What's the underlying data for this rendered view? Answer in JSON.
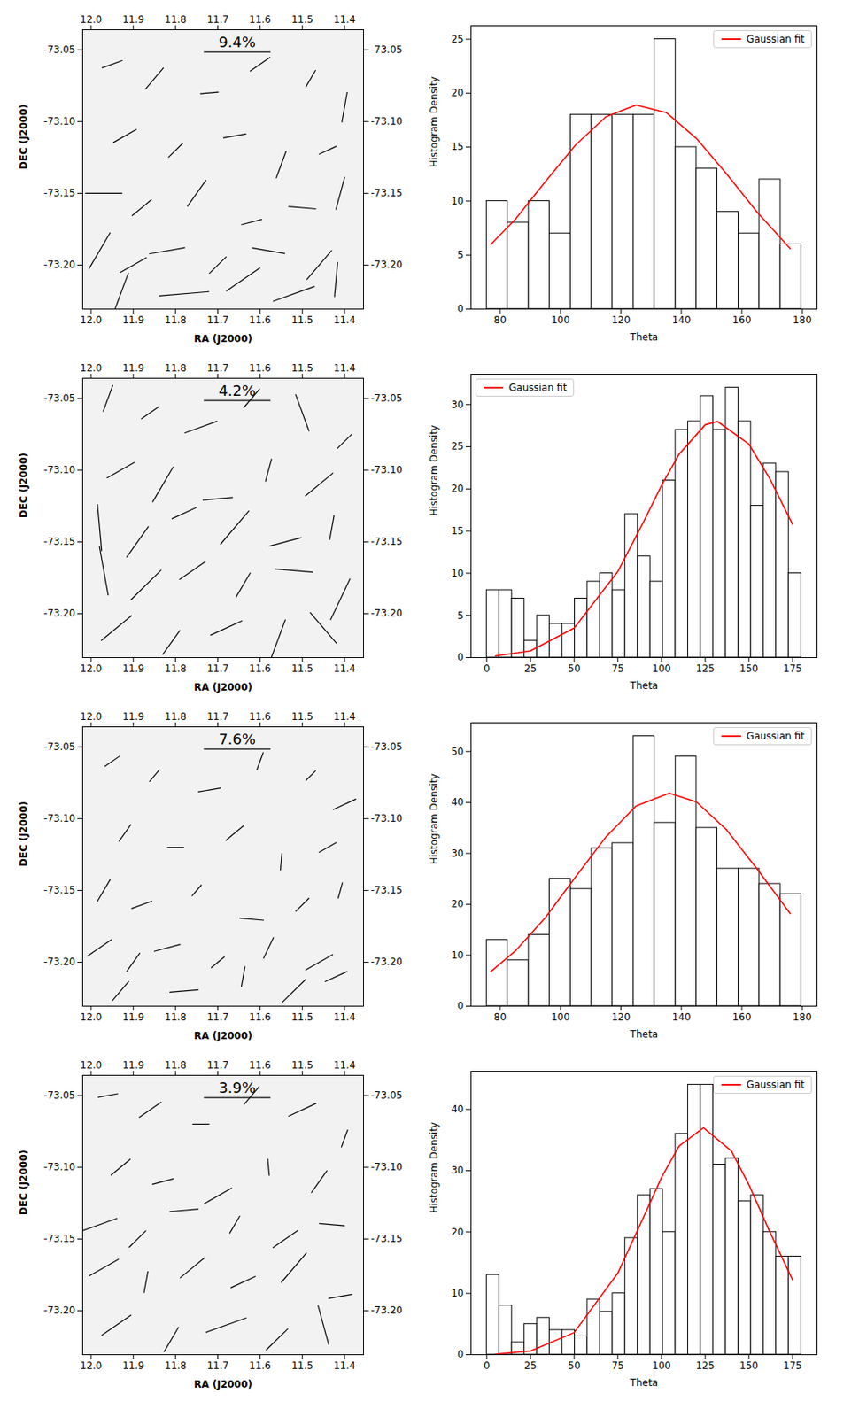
{
  "chart_data": [
    {
      "type": "vector",
      "x_label": "RA (J2000)",
      "y_label": "DEC (J2000)",
      "xlim": [
        12.02,
        11.355
      ],
      "ylim": [
        -73.2306,
        -73.036
      ],
      "xticks": [
        {
          "value": 12,
          "label": "12.0"
        },
        11.9,
        11.8,
        11.7,
        11.6,
        11.5,
        11.4
      ],
      "yticks": [
        -73.05,
        {
          "value": -73.1,
          "label": "-73.10"
        },
        -73.15,
        {
          "value": -73.2,
          "label": "-73.20"
        }
      ],
      "scale_bar": {
        "value": 9.4,
        "label": "9.4%"
      },
      "vectors": {
        "x": [
          11.95,
          11.85,
          11.72,
          11.6,
          11.48,
          11.4,
          11.92,
          11.8,
          11.66,
          11.55,
          11.44,
          11.97,
          11.88,
          11.75,
          11.62,
          11.5,
          11.41,
          11.98,
          11.9,
          11.82,
          11.7,
          11.58,
          11.46,
          11.93,
          11.78,
          11.64,
          11.52,
          11.42
        ],
        "y": [
          -73.06,
          -73.07,
          -73.08,
          -73.06,
          -73.07,
          -73.09,
          -73.11,
          -73.12,
          -73.11,
          -73.13,
          -73.12,
          -73.15,
          -73.16,
          -73.15,
          -73.17,
          -73.16,
          -73.15,
          -73.19,
          -73.2,
          -73.19,
          -73.2,
          -73.19,
          -73.2,
          -73.22,
          -73.22,
          -73.21,
          -73.22,
          -73.21
        ],
        "p": [
          3.1,
          4.0,
          2.6,
          3.5,
          2.8,
          4.4,
          3.8,
          2.9,
          3.3,
          4.1,
          2.7,
          5.2,
          3.6,
          4.6,
          3.0,
          3.9,
          4.8,
          6.0,
          4.3,
          5.1,
          3.4,
          4.7,
          5.5,
          6.4,
          7.0,
          5.8,
          6.2,
          5.0
        ],
        "theta": [
          110,
          140,
          95,
          125,
          150,
          170,
          120,
          135,
          100,
          160,
          115,
          90,
          130,
          145,
          105,
          85,
          165,
          150,
          120,
          100,
          135,
          80,
          140,
          160,
          95,
          125,
          110,
          175
        ]
      }
    },
    {
      "type": "histogram",
      "x_label": "Theta",
      "y_label": "Histogram Density",
      "xlim": [
        70.4,
        184.9
      ],
      "ylim": [
        0,
        26.25
      ],
      "xticks": [
        80,
        100,
        120,
        140,
        160,
        180
      ],
      "yticks": [
        0,
        5,
        10,
        15,
        20,
        25
      ],
      "bins": [
        75.6,
        82.5,
        89.5,
        96.4,
        103.4,
        110.3,
        117.2,
        124.2,
        131.1,
        138.1,
        145.0,
        151.9,
        158.9,
        165.8,
        172.8,
        179.7
      ],
      "values": [
        10,
        8,
        10,
        7,
        18,
        18,
        18,
        18,
        25,
        15,
        13,
        9,
        7,
        12,
        6
      ],
      "series": [
        {
          "name": "Gaussian fit",
          "color": "red",
          "type": "line",
          "x": [
            77,
            85,
            95,
            105,
            115,
            125,
            135,
            145,
            155,
            165,
            176
          ],
          "values": [
            6.0,
            8.3,
            11.8,
            15.2,
            17.8,
            18.9,
            18.2,
            15.8,
            12.5,
            9.0,
            5.6
          ]
        }
      ],
      "legend": "upper right"
    },
    {
      "type": "vector",
      "x_label": "RA (J2000)",
      "y_label": "DEC (J2000)",
      "xlim": [
        12.02,
        11.355
      ],
      "ylim": [
        -73.2306,
        -73.036
      ],
      "xticks": [
        {
          "value": 12,
          "label": "12.0"
        },
        11.9,
        11.8,
        11.7,
        11.6,
        11.5,
        11.4
      ],
      "yticks": [
        -73.05,
        {
          "value": -73.1,
          "label": "-73.10"
        },
        -73.15,
        {
          "value": -73.2,
          "label": "-73.20"
        }
      ],
      "scale_bar": {
        "value": 4.2,
        "label": "4.2%"
      },
      "vectors": {
        "x": [
          11.96,
          11.86,
          11.74,
          11.62,
          11.5,
          11.4,
          11.93,
          11.83,
          11.7,
          11.58,
          11.46,
          11.98,
          11.89,
          11.78,
          11.66,
          11.54,
          11.43,
          11.97,
          11.87,
          11.76,
          11.64,
          11.52,
          11.41,
          11.94,
          11.81,
          11.68,
          11.56,
          11.45
        ],
        "y": [
          -73.05,
          -73.06,
          -73.07,
          -73.05,
          -73.06,
          -73.08,
          -73.1,
          -73.11,
          -73.12,
          -73.1,
          -73.11,
          -73.14,
          -73.15,
          -73.13,
          -73.14,
          -73.15,
          -73.14,
          -73.17,
          -73.18,
          -73.17,
          -73.18,
          -73.17,
          -73.19,
          -73.21,
          -73.22,
          -73.21,
          -73.22,
          -73.21
        ],
        "p": [
          1.8,
          1.4,
          2.2,
          1.6,
          2.5,
          1.3,
          2.0,
          2.6,
          1.9,
          1.5,
          2.3,
          3.0,
          2.4,
          1.7,
          2.8,
          2.1,
          1.6,
          3.2,
          2.7,
          2.0,
          1.8,
          2.4,
          2.9,
          2.5,
          1.9,
          2.2,
          3.1,
          2.6
        ],
        "theta": [
          160,
          125,
          110,
          140,
          20,
          135,
          120,
          150,
          95,
          165,
          130,
          5,
          145,
          115,
          140,
          105,
          170,
          10,
          135,
          125,
          150,
          85,
          155,
          130,
          145,
          115,
          160,
          40
        ]
      }
    },
    {
      "type": "histogram",
      "x_label": "Theta",
      "y_label": "Histogram Density",
      "xlim": [
        -9,
        189
      ],
      "ylim": [
        0,
        33.6
      ],
      "xticks": [
        0,
        25,
        50,
        75,
        100,
        125,
        150,
        175
      ],
      "yticks": [
        0,
        5,
        10,
        15,
        20,
        25,
        30
      ],
      "bins": [
        0,
        7.2,
        14.4,
        21.6,
        28.8,
        36,
        43.2,
        50.4,
        57.6,
        64.8,
        72,
        79.2,
        86.4,
        93.6,
        100.8,
        108,
        115.2,
        122.4,
        129.6,
        136.8,
        144,
        151.2,
        158.4,
        165.6,
        172.8,
        180
      ],
      "values": [
        8,
        8,
        7,
        2,
        5,
        4,
        4,
        7,
        9,
        10,
        8,
        17,
        12,
        9,
        21,
        27,
        28,
        31,
        27,
        32,
        28,
        18,
        23,
        22,
        10
      ],
      "series": [
        {
          "name": "Gaussian fit",
          "color": "red",
          "type": "line",
          "x": [
            5,
            25,
            50,
            75,
            90,
            100,
            110,
            125,
            132,
            150,
            162,
            175
          ],
          "values": [
            0.2,
            0.8,
            3.5,
            10.2,
            16.2,
            20.4,
            24.1,
            27.6,
            28.0,
            25.3,
            21.2,
            15.8
          ]
        }
      ],
      "legend": "upper left"
    },
    {
      "type": "vector",
      "x_label": "RA (J2000)",
      "y_label": "DEC (J2000)",
      "xlim": [
        12.02,
        11.355
      ],
      "ylim": [
        -73.2306,
        -73.036
      ],
      "xticks": [
        {
          "value": 12,
          "label": "12.0"
        },
        11.9,
        11.8,
        11.7,
        11.6,
        11.5,
        11.4
      ],
      "yticks": [
        -73.05,
        {
          "value": -73.1,
          "label": "-73.10"
        },
        -73.15,
        {
          "value": -73.2,
          "label": "-73.20"
        }
      ],
      "scale_bar": {
        "value": 7.6,
        "label": "7.6%"
      },
      "vectors": {
        "x": [
          11.95,
          11.85,
          11.72,
          11.6,
          11.48,
          11.4,
          11.92,
          11.8,
          11.66,
          11.55,
          11.44,
          11.97,
          11.88,
          11.75,
          11.62,
          11.5,
          11.41,
          11.98,
          11.9,
          11.82,
          11.7,
          11.58,
          11.46,
          11.93,
          11.78,
          11.64,
          11.52,
          11.42
        ],
        "y": [
          -73.06,
          -73.07,
          -73.08,
          -73.06,
          -73.07,
          -73.09,
          -73.11,
          -73.12,
          -73.11,
          -73.13,
          -73.12,
          -73.15,
          -73.16,
          -73.15,
          -73.17,
          -73.16,
          -73.15,
          -73.19,
          -73.2,
          -73.19,
          -73.2,
          -73.19,
          -73.2,
          -73.22,
          -73.22,
          -73.21,
          -73.22,
          -73.21
        ],
        "p": [
          2.1,
          1.8,
          2.6,
          2.2,
          1.6,
          2.9,
          2.4,
          1.9,
          2.7,
          2.0,
          2.3,
          3.0,
          2.5,
          1.7,
          2.8,
          2.2,
          1.9,
          3.4,
          2.6,
          3.1,
          2.0,
          2.7,
          3.6,
          2.9,
          3.3,
          2.4,
          3.8,
          2.8
        ],
        "theta": [
          125,
          140,
          100,
          160,
          135,
          115,
          145,
          90,
          130,
          175,
          120,
          150,
          110,
          140,
          85,
          135,
          165,
          125,
          145,
          105,
          130,
          155,
          120,
          140,
          95,
          170,
          135,
          115
        ]
      }
    },
    {
      "type": "histogram",
      "x_label": "Theta",
      "y_label": "Histogram Density",
      "xlim": [
        70.4,
        184.9
      ],
      "ylim": [
        0,
        55.65
      ],
      "xticks": [
        80,
        100,
        120,
        140,
        160,
        180
      ],
      "yticks": [
        0,
        10,
        20,
        30,
        40,
        50
      ],
      "bins": [
        75.6,
        82.5,
        89.5,
        96.4,
        103.4,
        110.3,
        117.2,
        124.2,
        131.1,
        138.1,
        145.0,
        151.9,
        158.9,
        165.8,
        172.8,
        179.7
      ],
      "values": [
        13,
        9,
        14,
        25,
        23,
        31,
        32,
        53,
        36,
        49,
        35,
        27,
        27,
        24,
        22
      ],
      "series": [
        {
          "name": "Gaussian fit",
          "color": "red",
          "type": "line",
          "x": [
            77,
            85,
            95,
            105,
            115,
            125,
            136,
            145,
            155,
            165,
            176
          ],
          "values": [
            6.8,
            10.8,
            17.4,
            25.4,
            33.2,
            39.3,
            41.8,
            40.1,
            34.6,
            27.0,
            18.2
          ]
        }
      ],
      "legend": "upper right"
    },
    {
      "type": "vector",
      "x_label": "RA (J2000)",
      "y_label": "DEC (J2000)",
      "xlim": [
        12.02,
        11.355
      ],
      "ylim": [
        -73.2306,
        -73.036
      ],
      "xticks": [
        {
          "value": 12,
          "label": "12.0"
        },
        11.9,
        11.8,
        11.7,
        11.6,
        11.5,
        11.4
      ],
      "yticks": [
        -73.05,
        {
          "value": -73.1,
          "label": "-73.10"
        },
        -73.15,
        {
          "value": -73.2,
          "label": "-73.20"
        }
      ],
      "scale_bar": {
        "value": 3.9,
        "label": "3.9%"
      },
      "vectors": {
        "x": [
          11.96,
          11.86,
          11.74,
          11.62,
          11.5,
          11.4,
          11.93,
          11.83,
          11.7,
          11.58,
          11.46,
          11.98,
          11.89,
          11.78,
          11.66,
          11.54,
          11.43,
          11.97,
          11.87,
          11.76,
          11.64,
          11.52,
          11.41,
          11.94,
          11.81,
          11.68,
          11.56,
          11.45
        ],
        "y": [
          -73.05,
          -73.06,
          -73.07,
          -73.05,
          -73.06,
          -73.08,
          -73.1,
          -73.11,
          -73.12,
          -73.1,
          -73.11,
          -73.14,
          -73.15,
          -73.13,
          -73.14,
          -73.15,
          -73.14,
          -73.17,
          -73.18,
          -73.17,
          -73.18,
          -73.17,
          -73.19,
          -73.21,
          -73.22,
          -73.21,
          -73.22,
          -73.21
        ],
        "p": [
          1.2,
          1.6,
          1.0,
          1.4,
          1.8,
          1.1,
          1.5,
          1.3,
          1.9,
          1.0,
          1.6,
          2.2,
          1.4,
          1.7,
          1.2,
          1.8,
          1.5,
          2.0,
          1.3,
          1.9,
          1.6,
          2.3,
          1.4,
          2.1,
          1.7,
          2.5,
          1.8,
          2.4
        ],
        "theta": [
          100,
          125,
          90,
          140,
          115,
          160,
          130,
          105,
          120,
          5,
          145,
          110,
          135,
          95,
          150,
          125,
          85,
          120,
          170,
          130,
          115,
          140,
          100,
          125,
          150,
          110,
          135,
          15
        ]
      }
    },
    {
      "type": "histogram",
      "x_label": "Theta",
      "y_label": "Histogram Density",
      "xlim": [
        -9,
        189
      ],
      "ylim": [
        0,
        46.2
      ],
      "xticks": [
        0,
        25,
        50,
        75,
        100,
        125,
        150,
        175
      ],
      "yticks": [
        0,
        10,
        20,
        30,
        40
      ],
      "bins": [
        0,
        7.2,
        14.4,
        21.6,
        28.8,
        36,
        43.2,
        50.4,
        57.6,
        64.8,
        72,
        79.2,
        86.4,
        93.6,
        100.8,
        108,
        115.2,
        122.4,
        129.6,
        136.8,
        144,
        151.2,
        158.4,
        165.6,
        172.8,
        180
      ],
      "values": [
        13,
        8,
        2,
        5,
        6,
        4,
        4,
        3,
        9,
        7,
        10,
        19,
        26,
        27,
        20,
        36,
        44,
        44,
        31,
        32,
        25,
        26,
        20,
        16,
        16
      ],
      "series": [
        {
          "name": "Gaussian fit",
          "color": "red",
          "type": "line",
          "x": [
            5,
            25,
            50,
            75,
            90,
            100,
            110,
            124,
            140,
            150,
            162,
            175
          ],
          "values": [
            0.1,
            0.6,
            3.6,
            13.3,
            22.6,
            28.9,
            34.0,
            37.0,
            33.2,
            27.7,
            20.0,
            12.2
          ]
        }
      ],
      "legend": "upper right"
    }
  ]
}
